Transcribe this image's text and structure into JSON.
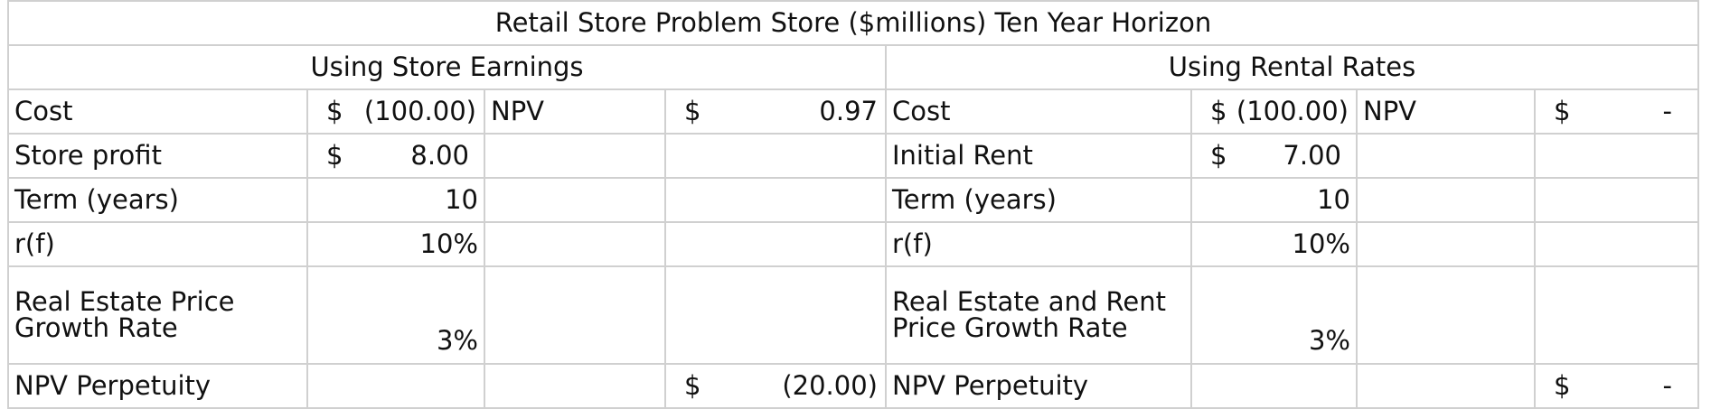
{
  "title": "Retail Store Problem Store  ($millions) Ten Year Horizon",
  "sections": {
    "left": "Using Store Earnings",
    "right": "Using Rental Rates"
  },
  "left": {
    "cost_label": "Cost",
    "cost_currency": "$",
    "cost_value": "(100.00)",
    "npv_label": "NPV",
    "npv_currency": "$",
    "npv_value": "0.97",
    "profit_label": "Store profit",
    "profit_currency": "$",
    "profit_value": "8.00",
    "term_label": "Term (years)",
    "term_value": "10",
    "rf_label": "r(f)",
    "rf_value": "10%",
    "growth_label_1": "Real Estate Price",
    "growth_label_2": "Growth Rate",
    "growth_value": "3%",
    "perp_label": "NPV Perpetuity",
    "perp_currency": "$",
    "perp_value": "(20.00)"
  },
  "right": {
    "cost_label": "Cost",
    "cost_currency": "$",
    "cost_value": "(100.00)",
    "npv_label": "NPV",
    "npv_currency": "$",
    "npv_value": "-",
    "rent_label": "Initial Rent",
    "rent_currency": "$",
    "rent_value": "7.00",
    "term_label": "Term (years)",
    "term_value": "10",
    "rf_label": "r(f)",
    "rf_value": "10%",
    "growth_label_1": "Real Estate and Rent",
    "growth_label_2": "Price Growth Rate",
    "growth_value": "3%",
    "perp_label": "NPV Perpetuity",
    "perp_currency": "$",
    "perp_value": "-"
  }
}
